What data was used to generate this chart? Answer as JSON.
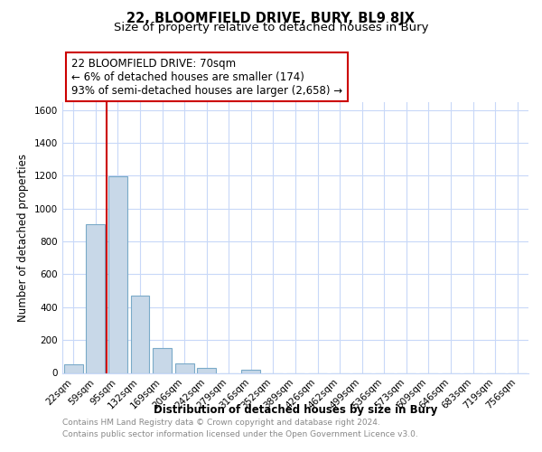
{
  "title": "22, BLOOMFIELD DRIVE, BURY, BL9 8JX",
  "subtitle": "Size of property relative to detached houses in Bury",
  "xlabel": "Distribution of detached houses by size in Bury",
  "ylabel": "Number of detached properties",
  "bar_labels": [
    "22sqm",
    "59sqm",
    "95sqm",
    "132sqm",
    "169sqm",
    "206sqm",
    "242sqm",
    "279sqm",
    "316sqm",
    "352sqm",
    "389sqm",
    "426sqm",
    "462sqm",
    "499sqm",
    "536sqm",
    "573sqm",
    "609sqm",
    "646sqm",
    "683sqm",
    "719sqm",
    "756sqm"
  ],
  "bar_values": [
    55,
    905,
    1195,
    470,
    150,
    60,
    28,
    0,
    20,
    0,
    0,
    0,
    0,
    0,
    0,
    0,
    0,
    0,
    0,
    0,
    0
  ],
  "bar_color": "#c8d8e8",
  "bar_edge_color": "#7aaac8",
  "vline_x": 1.5,
  "vline_color": "#cc0000",
  "ylim": [
    0,
    1650
  ],
  "yticks": [
    0,
    200,
    400,
    600,
    800,
    1000,
    1200,
    1400,
    1600
  ],
  "annotation_text": "22 BLOOMFIELD DRIVE: 70sqm\n← 6% of detached houses are smaller (174)\n93% of semi-detached houses are larger (2,658) →",
  "annotation_box_color": "#ffffff",
  "annotation_box_edge": "#cc0000",
  "footer_line1": "Contains HM Land Registry data © Crown copyright and database right 2024.",
  "footer_line2": "Contains public sector information licensed under the Open Government Licence v3.0.",
  "bg_color": "#ffffff",
  "grid_color": "#c8d8f8",
  "title_fontsize": 10.5,
  "subtitle_fontsize": 9.5,
  "axis_label_fontsize": 8.5,
  "tick_fontsize": 7.5,
  "annotation_fontsize": 8.5,
  "footer_fontsize": 6.5
}
